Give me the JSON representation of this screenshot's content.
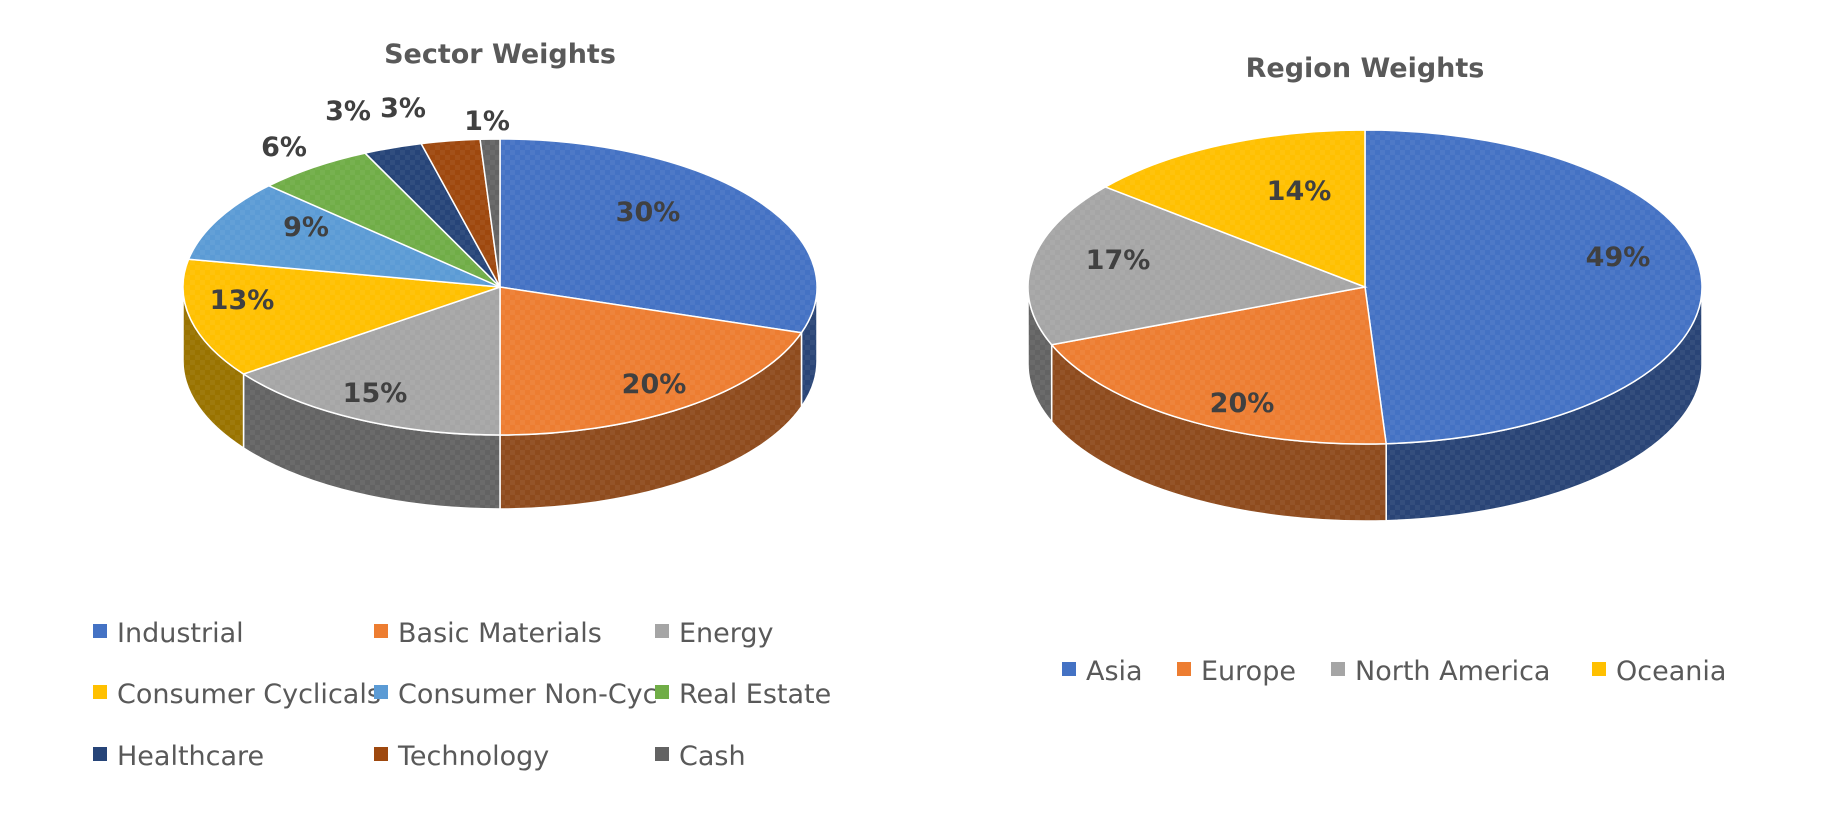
{
  "chart_data": [
    {
      "type": "pie",
      "title": "Sector Weights",
      "categories": [
        "Industrial",
        "Basic Materials",
        "Energy",
        "Consumer Cyclicals",
        "Consumer Non-Cyc",
        "Real Estate",
        "Healthcare",
        "Technology",
        "Cash"
      ],
      "values": [
        30,
        20,
        15,
        13,
        9,
        6,
        3,
        3,
        1
      ],
      "labels": [
        "30%",
        "20%",
        "15%",
        "13%",
        "9%",
        "6%",
        "3%",
        "3%",
        "1%"
      ],
      "colors": [
        "#4472C4",
        "#ED7D31",
        "#A5A5A5",
        "#FFC000",
        "#5B9BD5",
        "#70AD47",
        "#264478",
        "#9E480E",
        "#636363"
      ],
      "legend_position": "bottom",
      "style": "3d"
    },
    {
      "type": "pie",
      "title": "Region Weights",
      "categories": [
        "Asia",
        "Europe",
        "North America",
        "Oceania"
      ],
      "values": [
        49,
        20,
        17,
        14
      ],
      "labels": [
        "49%",
        "20%",
        "17%",
        "14%"
      ],
      "colors": [
        "#4472C4",
        "#ED7D31",
        "#A5A5A5",
        "#FFC000"
      ],
      "legend_position": "bottom",
      "style": "3d"
    }
  ]
}
